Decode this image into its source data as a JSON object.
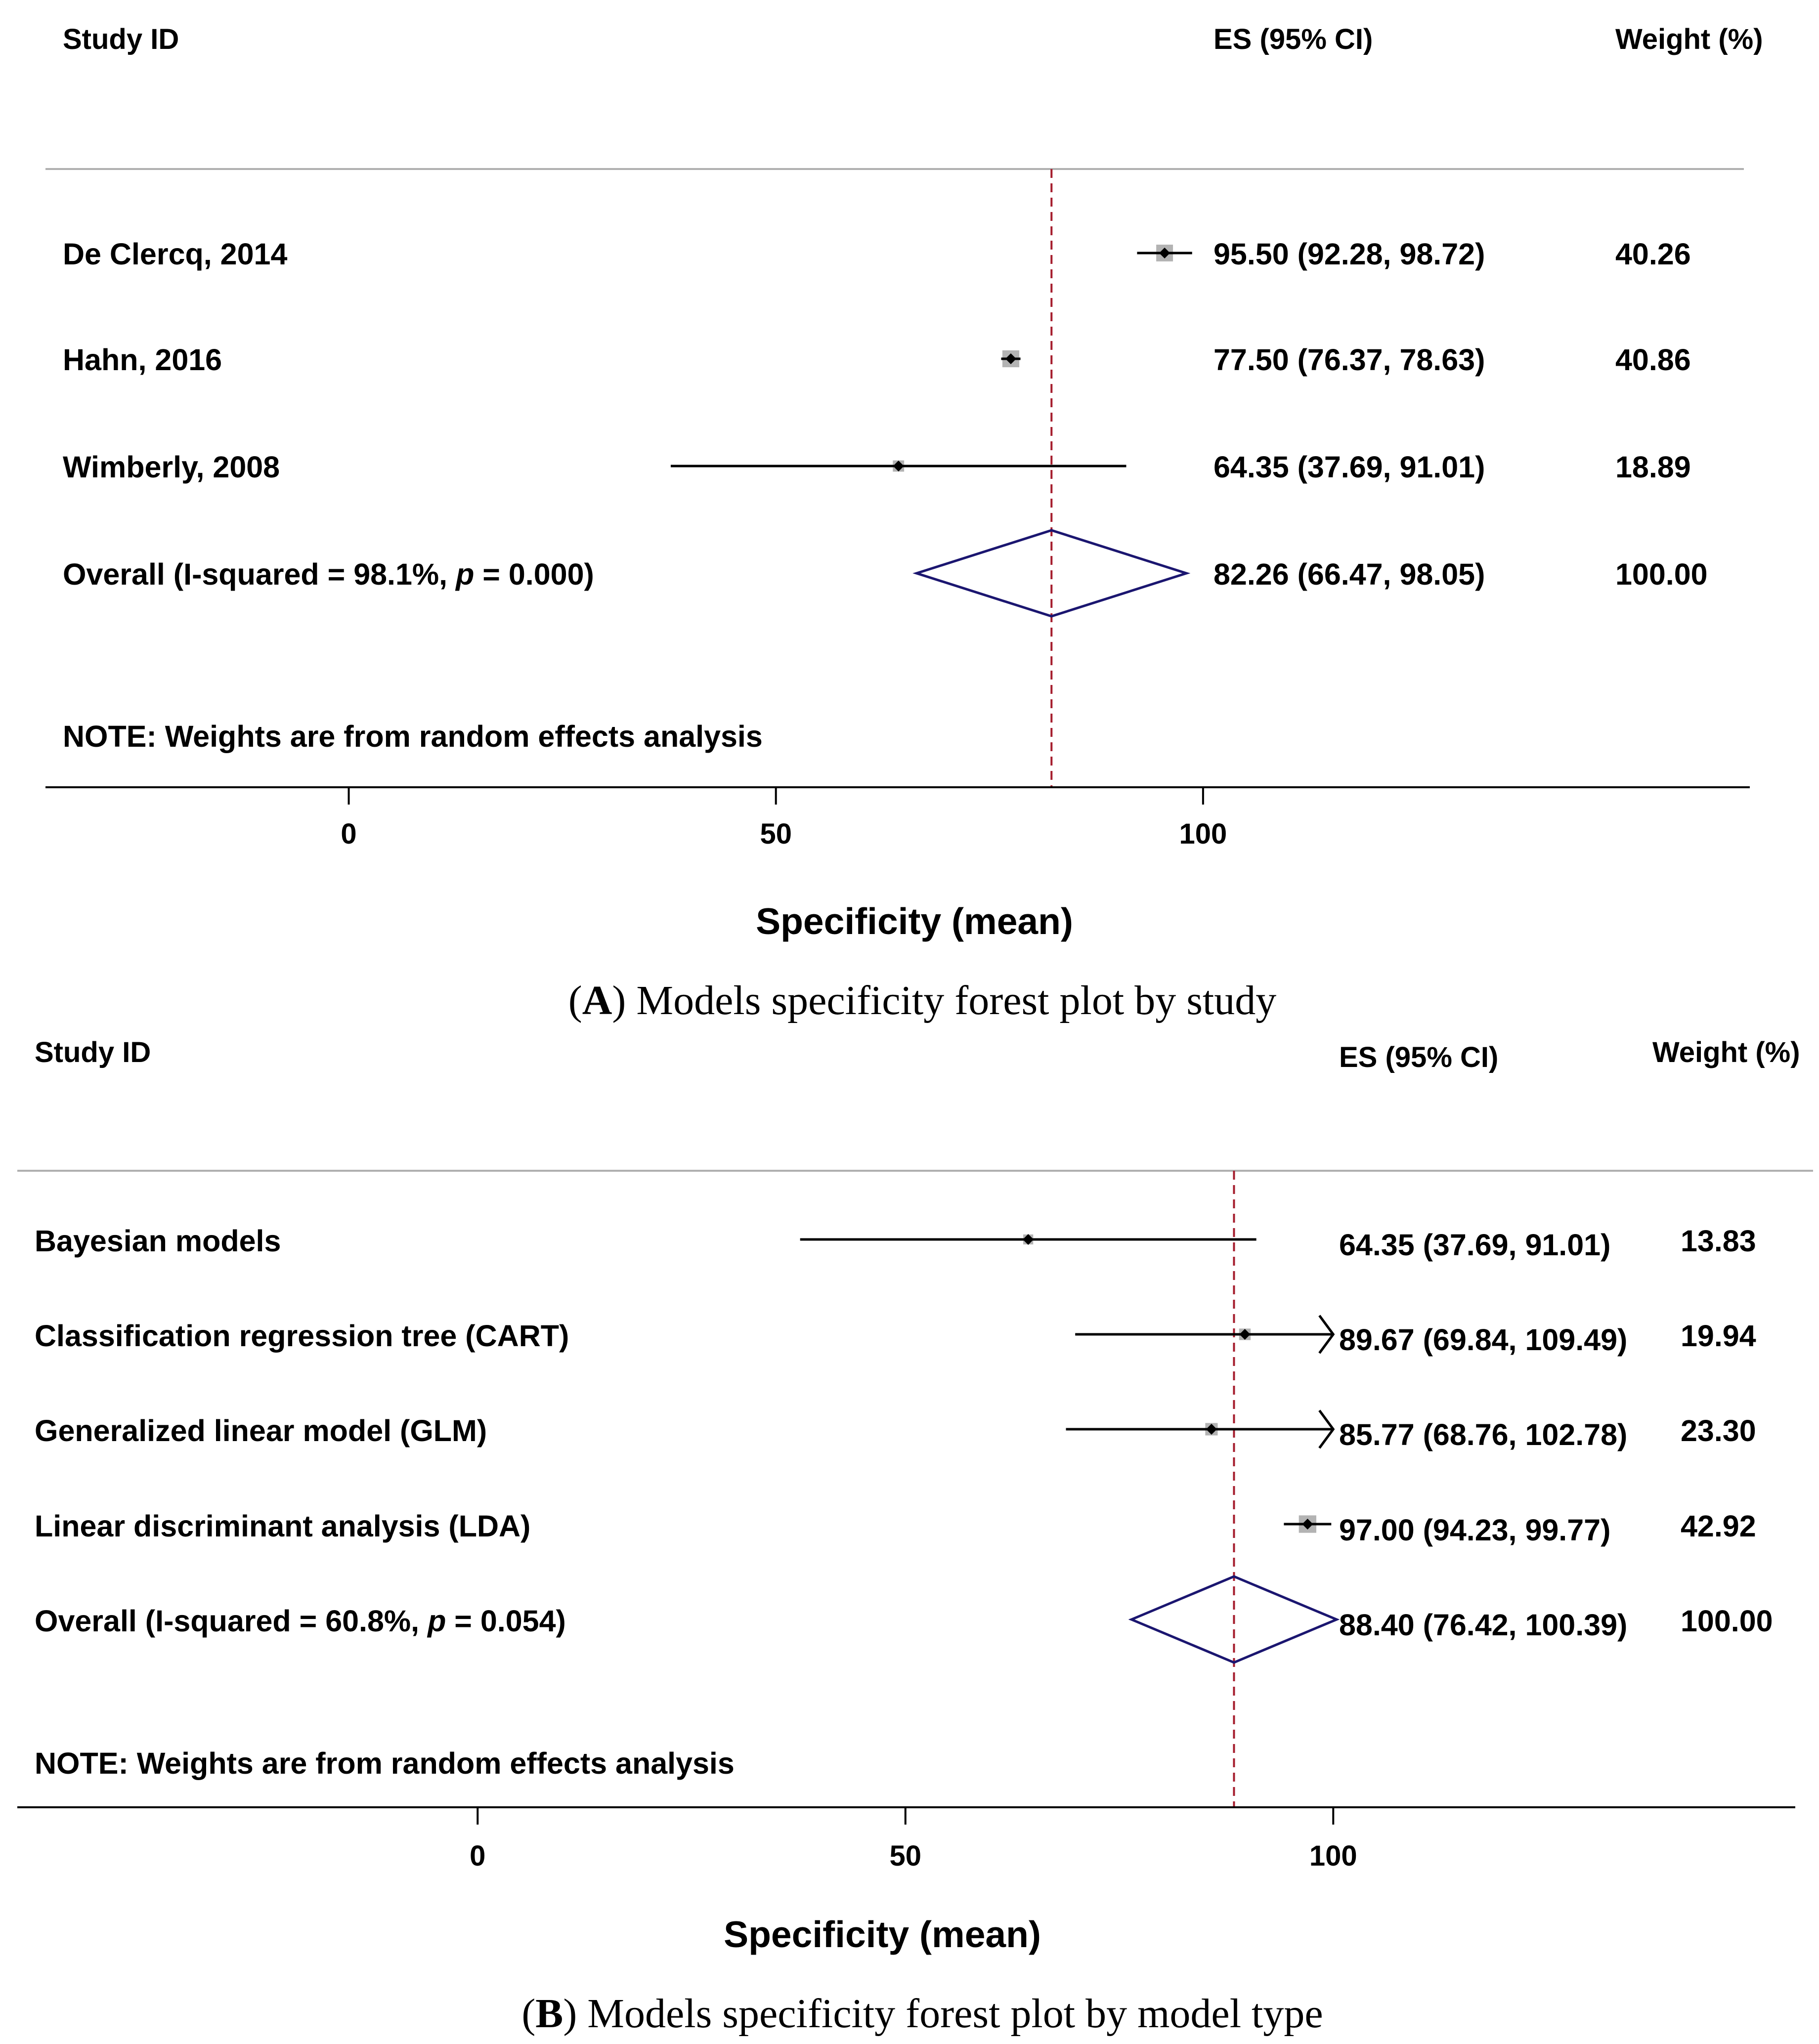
{
  "chart_data": [
    {
      "type": "forest",
      "panel": "A",
      "headers": {
        "study": "Study ID",
        "es": "ES (95% CI)",
        "weight": "Weight (%)"
      },
      "xlabel": "Specificity (mean)",
      "xticks": [
        "0",
        "50",
        "100"
      ],
      "xlim": [
        -35.5,
        164
      ],
      "reference_line": 82.26,
      "studies": [
        {
          "label": "De Clercq, 2014",
          "es": 95.5,
          "lo": 92.28,
          "hi": 98.72,
          "es_text": "95.50 (92.28, 98.72)",
          "weight": "40.26"
        },
        {
          "label": "Hahn, 2016",
          "es": 77.5,
          "lo": 76.37,
          "hi": 78.63,
          "es_text": "77.50 (76.37, 78.63)",
          "weight": "40.86"
        },
        {
          "label": "Wimberly, 2008",
          "es": 64.35,
          "lo": 37.69,
          "hi": 91.01,
          "es_text": "64.35 (37.69, 91.01)",
          "weight": "18.89"
        }
      ],
      "overall": {
        "label_pre": "Overall  (I-squared = 98.1%, ",
        "label_p": "p",
        "label_post": " = 0.000)",
        "es": 82.26,
        "lo": 66.47,
        "hi": 98.05,
        "es_text": "82.26 (66.47, 98.05)",
        "weight": "100.00"
      },
      "note": "NOTE: Weights are from random effects analysis",
      "caption_letter": "A",
      "caption_open": "(",
      "caption_rest": ") Models specificity forest plot by study"
    },
    {
      "type": "forest",
      "panel": "B",
      "headers": {
        "study": "Study ID",
        "es": "ES (95% CI)",
        "weight": "Weight (%)"
      },
      "xlabel": "Specificity (mean)",
      "xticks": [
        "0",
        "50",
        "100"
      ],
      "xlim": [
        -53.8,
        154
      ],
      "arrow_clip": 100,
      "reference_line": 88.4,
      "studies": [
        {
          "label": "Bayesian models",
          "es": 64.35,
          "lo": 37.69,
          "hi": 91.01,
          "es_text": "64.35 (37.69, 91.01)",
          "weight": "13.83"
        },
        {
          "label": "Classification regression tree (CART)",
          "es": 89.67,
          "lo": 69.84,
          "hi": 109.49,
          "es_text": "89.67 (69.84, 109.49)",
          "weight": "19.94"
        },
        {
          "label": "Generalized linear model (GLM)",
          "es": 85.77,
          "lo": 68.76,
          "hi": 102.78,
          "es_text": "85.77 (68.76, 102.78)",
          "weight": "23.30"
        },
        {
          "label": "Linear discriminant analysis (LDA)",
          "es": 97.0,
          "lo": 94.23,
          "hi": 99.77,
          "es_text": "97.00 (94.23, 99.77)",
          "weight": "42.92"
        }
      ],
      "overall": {
        "label_pre": "Overall  (I-squared = 60.8%, ",
        "label_p": "p",
        "label_post": " = 0.054)",
        "es": 88.4,
        "lo": 76.42,
        "hi": 100.39,
        "es_text": "88.40 (76.42, 100.39)",
        "weight": "100.00"
      },
      "note": "NOTE: Weights are from random effects analysis",
      "caption_letter": "B",
      "caption_open": "(",
      "caption_rest": ") Models specificity forest plot by model type"
    }
  ],
  "colors": {
    "line": "#000000",
    "weight_box": "#b3b3b3",
    "reference_line": "#a51d2d",
    "diamond": "#1b1670",
    "header_rule": "#b0b0b0"
  }
}
